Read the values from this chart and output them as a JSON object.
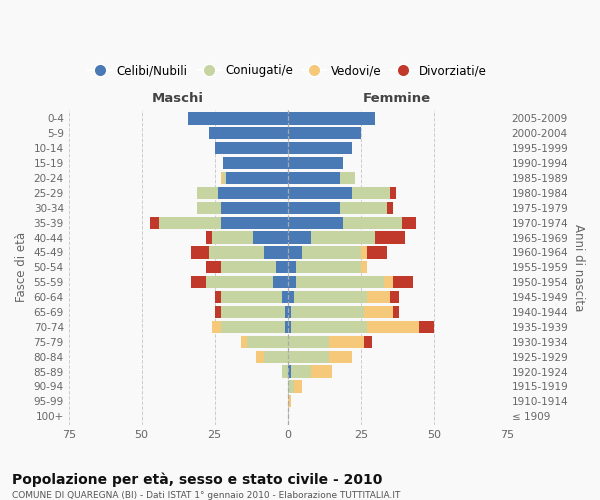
{
  "age_groups": [
    "100+",
    "95-99",
    "90-94",
    "85-89",
    "80-84",
    "75-79",
    "70-74",
    "65-69",
    "60-64",
    "55-59",
    "50-54",
    "45-49",
    "40-44",
    "35-39",
    "30-34",
    "25-29",
    "20-24",
    "15-19",
    "10-14",
    "5-9",
    "0-4"
  ],
  "birth_years": [
    "≤ 1909",
    "1910-1914",
    "1915-1919",
    "1920-1924",
    "1925-1929",
    "1930-1934",
    "1935-1939",
    "1940-1944",
    "1945-1949",
    "1950-1954",
    "1955-1959",
    "1960-1964",
    "1965-1969",
    "1970-1974",
    "1975-1979",
    "1980-1984",
    "1985-1989",
    "1990-1994",
    "1995-1999",
    "2000-2004",
    "2005-2009"
  ],
  "maschi": {
    "celibi": [
      0,
      0,
      0,
      0,
      0,
      0,
      1,
      1,
      2,
      5,
      4,
      8,
      12,
      23,
      23,
      24,
      21,
      22,
      25,
      27,
      34
    ],
    "coniugati": [
      0,
      0,
      0,
      2,
      8,
      14,
      22,
      22,
      21,
      23,
      19,
      19,
      14,
      21,
      8,
      7,
      1,
      0,
      0,
      0,
      0
    ],
    "vedovi": [
      0,
      0,
      0,
      0,
      3,
      2,
      3,
      0,
      0,
      0,
      0,
      0,
      0,
      0,
      0,
      0,
      1,
      0,
      0,
      0,
      0
    ],
    "divorziati": [
      0,
      0,
      0,
      0,
      0,
      0,
      0,
      2,
      2,
      5,
      5,
      6,
      2,
      3,
      0,
      0,
      0,
      0,
      0,
      0,
      0
    ]
  },
  "femmine": {
    "nubili": [
      0,
      0,
      0,
      1,
      0,
      0,
      1,
      1,
      2,
      3,
      3,
      5,
      8,
      19,
      18,
      22,
      18,
      19,
      22,
      25,
      30
    ],
    "coniugate": [
      0,
      0,
      2,
      7,
      14,
      14,
      26,
      25,
      25,
      30,
      22,
      20,
      22,
      20,
      16,
      13,
      5,
      0,
      0,
      0,
      0
    ],
    "vedove": [
      0,
      1,
      3,
      7,
      8,
      12,
      18,
      10,
      8,
      3,
      2,
      2,
      0,
      0,
      0,
      0,
      0,
      0,
      0,
      0,
      0
    ],
    "divorziate": [
      0,
      0,
      0,
      0,
      0,
      3,
      5,
      2,
      3,
      7,
      0,
      7,
      10,
      5,
      2,
      2,
      0,
      0,
      0,
      0,
      0
    ]
  },
  "colors": {
    "celibi": "#4a7ab5",
    "coniugati": "#c5d4a0",
    "vedovi": "#f5c87a",
    "divorziati": "#c0392b"
  },
  "xlim": 75,
  "title": "Popolazione per età, sesso e stato civile - 2010",
  "subtitle": "COMUNE DI QUAREGNA (BI) - Dati ISTAT 1° gennaio 2010 - Elaborazione TUTTITALIA.IT",
  "ylabel_left": "Fasce di età",
  "ylabel_right": "Anni di nascita",
  "xlabel_maschi": "Maschi",
  "xlabel_femmine": "Femmine",
  "legend_labels": [
    "Celibi/Nubili",
    "Coniugati/e",
    "Vedovi/e",
    "Divorziati/e"
  ],
  "bg_color": "#f9f9f9",
  "grid_color": "#cccccc"
}
